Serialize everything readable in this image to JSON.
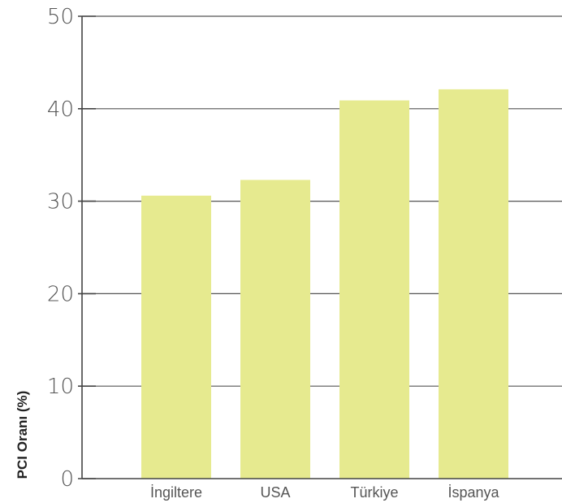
{
  "chart_data": {
    "type": "bar",
    "title": "",
    "xlabel": "",
    "ylabel": "PCI Oranı (%)",
    "categories": [
      "İngiltere",
      "USA",
      "Türkiye",
      "İspanya"
    ],
    "values": [
      30.6,
      32.3,
      40.9,
      42.1
    ],
    "ylim": [
      0,
      50
    ],
    "yticks": [
      0,
      10,
      20,
      30,
      40,
      50
    ],
    "grid": true,
    "legend": "none",
    "colors": {
      "bar": "#e6ea8f",
      "grid": "#555555",
      "text": "#555555"
    }
  }
}
